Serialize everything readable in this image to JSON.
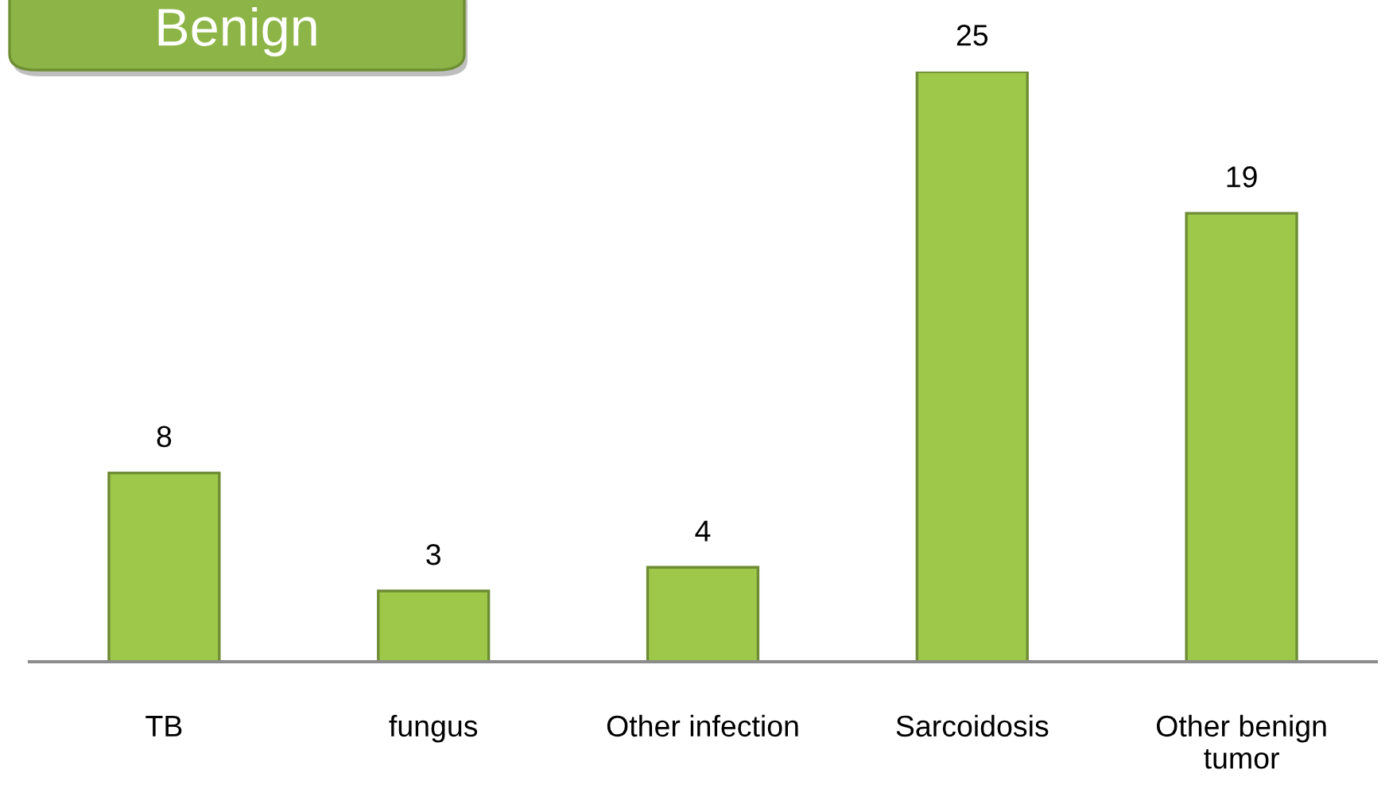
{
  "chart_data": {
    "type": "bar",
    "title": "Benign",
    "categories": [
      "TB",
      "fungus",
      "Other infection",
      "Sarcoidosis",
      "Other benign\ntumor"
    ],
    "values": [
      8,
      3,
      4,
      25,
      19
    ],
    "color": "#9dc84a",
    "data_labels": true
  }
}
